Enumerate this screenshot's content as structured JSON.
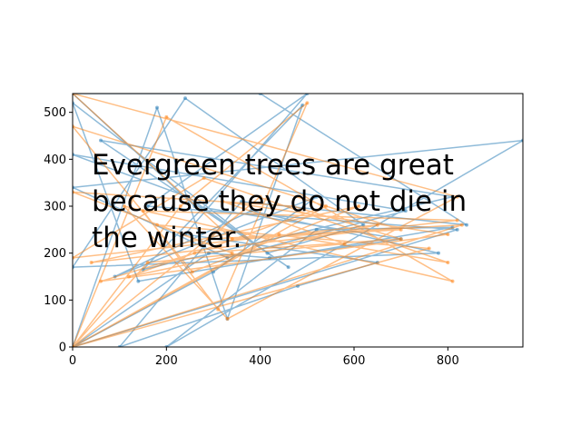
{
  "chart_data": {
    "type": "line",
    "title": "",
    "xlabel": "",
    "ylabel": "",
    "xlim": [
      0,
      960
    ],
    "ylim": [
      0,
      540
    ],
    "xticks": [
      0,
      200,
      400,
      600,
      800
    ],
    "yticks": [
      0,
      100,
      200,
      300,
      400,
      500
    ],
    "grid": false,
    "annotation": "Evergreen trees are great because they do not die in the winter.",
    "series": [
      {
        "color": "#1f77b4",
        "alpha": 0.5,
        "points": [
          [
            0,
            0
          ],
          [
            180,
            510
          ],
          [
            330,
            60
          ],
          [
            490,
            515
          ],
          [
            150,
            165
          ],
          [
            810,
            320
          ],
          [
            60,
            440
          ],
          [
            460,
            170
          ],
          [
            245,
            320
          ],
          [
            0,
            410
          ],
          [
            710,
            290
          ],
          [
            330,
            190
          ],
          [
            0,
            340
          ],
          [
            960,
            440
          ],
          [
            200,
            0
          ],
          [
            520,
            250
          ],
          [
            810,
            255
          ],
          [
            140,
            140
          ],
          [
            0,
            520
          ],
          [
            415,
            200
          ],
          [
            620,
            260
          ],
          [
            240,
            530
          ],
          [
            0,
            170
          ],
          [
            780,
            200
          ],
          [
            380,
            290
          ],
          [
            90,
            150
          ],
          [
            520,
            320
          ],
          [
            300,
            160
          ],
          [
            0,
            0
          ],
          [
            820,
            250
          ],
          [
            160,
            300
          ],
          [
            500,
            540
          ],
          [
            240,
            240
          ],
          [
            650,
            180
          ],
          [
            480,
            130
          ],
          [
            100,
            0
          ],
          [
            360,
            310
          ],
          [
            840,
            260
          ],
          [
            400,
            540
          ],
          [
            0,
            540
          ],
          [
            260,
            300
          ],
          [
            700,
            230
          ],
          [
            420,
            190
          ],
          [
            290,
            200
          ],
          [
            0,
            0
          ]
        ]
      },
      {
        "color": "#ff7f0e",
        "alpha": 0.5,
        "points": [
          [
            0,
            0
          ],
          [
            230,
            300
          ],
          [
            500,
            520
          ],
          [
            310,
            80
          ],
          [
            150,
            290
          ],
          [
            820,
            270
          ],
          [
            40,
            180
          ],
          [
            610,
            300
          ],
          [
            255,
            160
          ],
          [
            0,
            470
          ],
          [
            700,
            250
          ],
          [
            340,
            230
          ],
          [
            0,
            540
          ],
          [
            820,
            320
          ],
          [
            330,
            60
          ],
          [
            110,
            300
          ],
          [
            810,
            140
          ],
          [
            200,
            490
          ],
          [
            0,
            0
          ],
          [
            440,
            240
          ],
          [
            800,
            180
          ],
          [
            280,
            360
          ],
          [
            0,
            190
          ],
          [
            650,
            260
          ],
          [
            120,
            150
          ],
          [
            540,
            300
          ],
          [
            0,
            0
          ],
          [
            760,
            210
          ],
          [
            180,
            260
          ],
          [
            340,
            200
          ],
          [
            0,
            330
          ],
          [
            470,
            300
          ],
          [
            700,
            230
          ],
          [
            260,
            200
          ],
          [
            60,
            140
          ],
          [
            800,
            240
          ],
          [
            320,
            310
          ],
          [
            580,
            220
          ],
          [
            160,
            180
          ],
          [
            0,
            0
          ],
          [
            830,
            260
          ],
          [
            290,
            230
          ],
          [
            400,
            320
          ],
          [
            0,
            0
          ]
        ]
      }
    ]
  }
}
